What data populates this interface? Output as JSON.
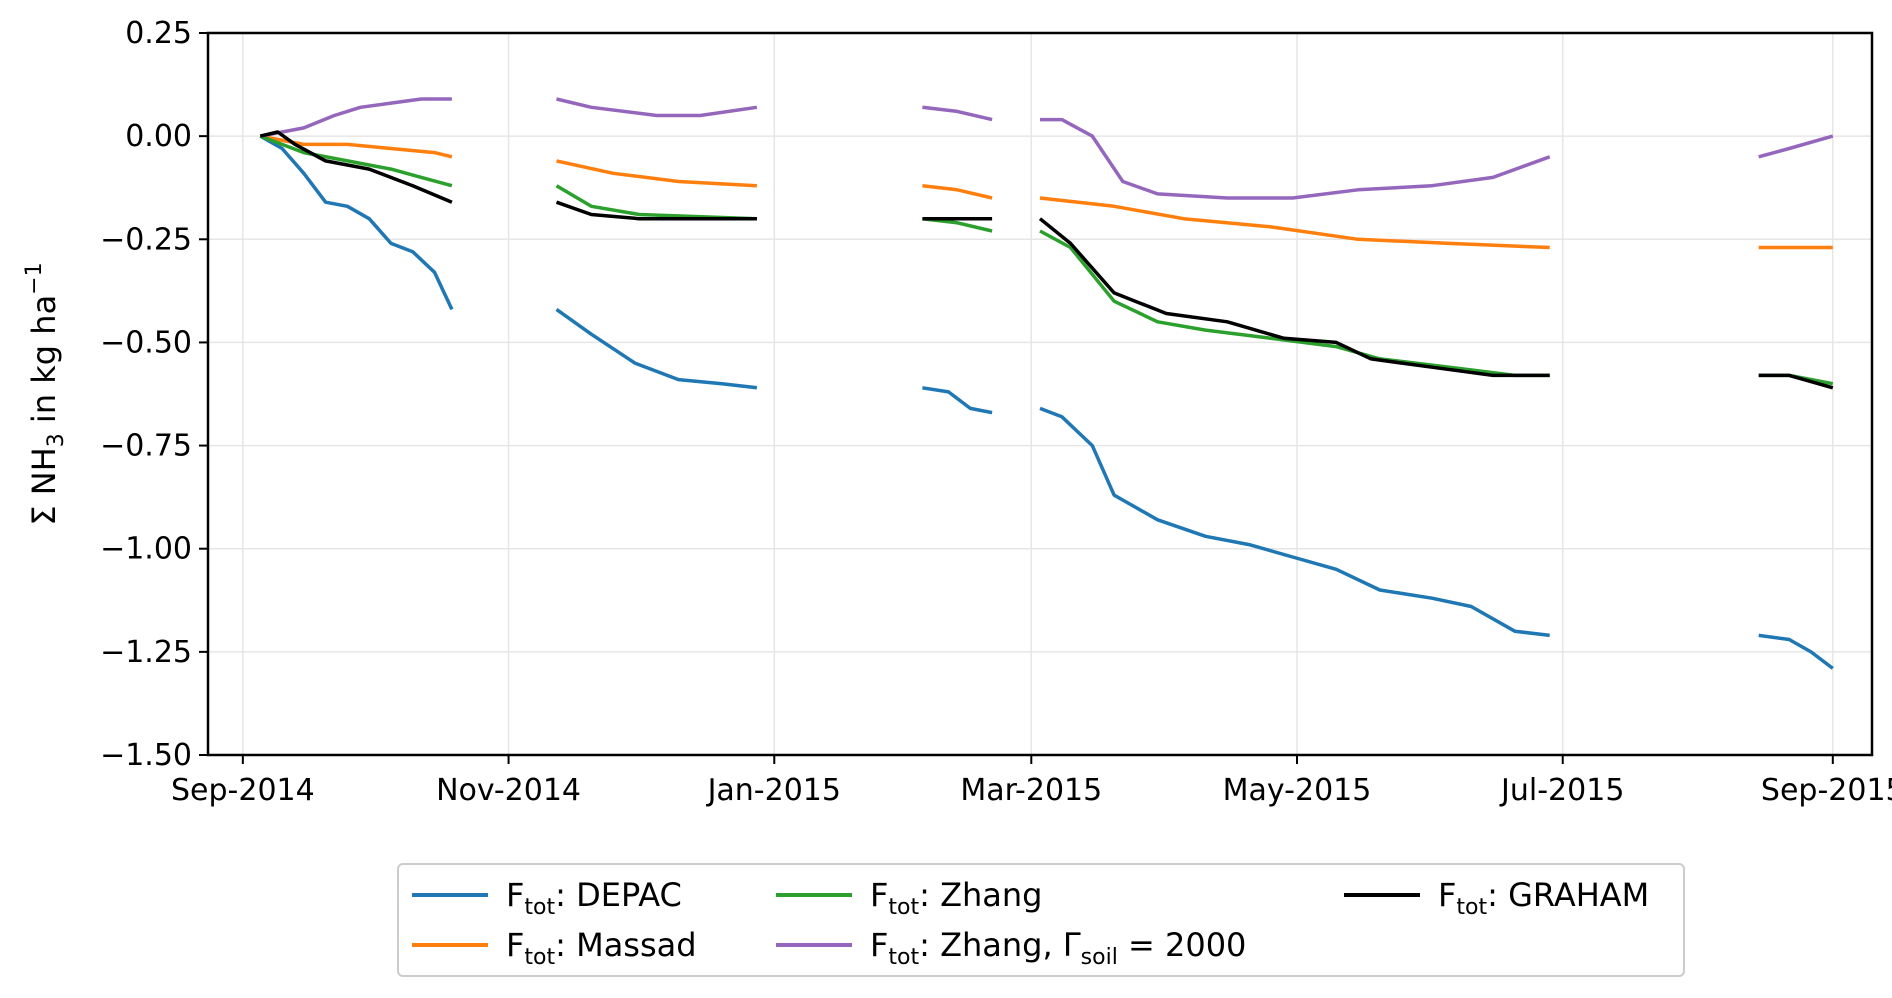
{
  "chart_data": {
    "type": "line",
    "title": "",
    "xlabel": "",
    "ylabel": "Σ NH₃ in kg ha⁻¹",
    "ylim": [
      -1.5,
      0.25
    ],
    "yticks": [
      0.25,
      0.0,
      -0.25,
      -0.5,
      -0.75,
      -1.0,
      -1.25,
      -1.5
    ],
    "ytick_labels": [
      "0.25",
      "0.00",
      "−0.25",
      "−0.50",
      "−0.75",
      "−1.00",
      "−1.25",
      "−1.50"
    ],
    "xlim": [
      "2014-08-24",
      "2015-09-10"
    ],
    "xticks": [
      "2014-09-01",
      "2014-11-01",
      "2015-01-01",
      "2015-03-01",
      "2015-05-01",
      "2015-07-01",
      "2015-09-01"
    ],
    "xtick_labels": [
      "Sep-2014",
      "Nov-2014",
      "Jan-2015",
      "Mar-2015",
      "May-2015",
      "Jul-2015",
      "Sep-2015"
    ],
    "grid": true,
    "legend_position": "bottom",
    "series": [
      {
        "name": "DEPAC",
        "legend_prefix": "F",
        "legend_sub": "tot",
        "color": "#1f77b4",
        "segments": [
          [
            [
              "2014-09-05",
              0
            ],
            [
              "2014-09-10",
              -0.03
            ],
            [
              "2014-09-15",
              -0.09
            ],
            [
              "2014-09-20",
              -0.16
            ],
            [
              "2014-09-25",
              -0.17
            ],
            [
              "2014-09-30",
              -0.2
            ],
            [
              "2014-10-05",
              -0.26
            ],
            [
              "2014-10-10",
              -0.28
            ],
            [
              "2014-10-15",
              -0.33
            ],
            [
              "2014-10-19",
              -0.42
            ]
          ],
          [
            [
              "2014-11-12",
              -0.42
            ],
            [
              "2014-11-20",
              -0.48
            ],
            [
              "2014-11-30",
              -0.55
            ],
            [
              "2014-12-10",
              -0.59
            ],
            [
              "2014-12-20",
              -0.6
            ],
            [
              "2014-12-28",
              -0.61
            ]
          ],
          [
            [
              "2015-02-04",
              -0.61
            ],
            [
              "2015-02-10",
              -0.62
            ],
            [
              "2015-02-15",
              -0.66
            ],
            [
              "2015-02-20",
              -0.67
            ]
          ],
          [
            [
              "2015-03-03",
              -0.66
            ],
            [
              "2015-03-08",
              -0.68
            ],
            [
              "2015-03-15",
              -0.75
            ],
            [
              "2015-03-20",
              -0.87
            ],
            [
              "2015-03-30",
              -0.93
            ],
            [
              "2015-04-10",
              -0.97
            ],
            [
              "2015-04-20",
              -0.99
            ],
            [
              "2015-04-30",
              -1.02
            ],
            [
              "2015-05-10",
              -1.05
            ],
            [
              "2015-05-20",
              -1.1
            ],
            [
              "2015-06-01",
              -1.12
            ],
            [
              "2015-06-10",
              -1.14
            ],
            [
              "2015-06-20",
              -1.2
            ],
            [
              "2015-06-28",
              -1.21
            ]
          ],
          [
            [
              "2015-08-15",
              -1.21
            ],
            [
              "2015-08-22",
              -1.22
            ],
            [
              "2015-08-27",
              -1.25
            ],
            [
              "2015-09-01",
              -1.29
            ]
          ]
        ]
      },
      {
        "name": "Massad",
        "legend_prefix": "F",
        "legend_sub": "tot",
        "color": "#ff7f0e",
        "segments": [
          [
            [
              "2014-09-05",
              0
            ],
            [
              "2014-09-15",
              -0.02
            ],
            [
              "2014-09-25",
              -0.02
            ],
            [
              "2014-10-05",
              -0.03
            ],
            [
              "2014-10-15",
              -0.04
            ],
            [
              "2014-10-19",
              -0.05
            ]
          ],
          [
            [
              "2014-11-12",
              -0.06
            ],
            [
              "2014-11-25",
              -0.09
            ],
            [
              "2014-12-10",
              -0.11
            ],
            [
              "2014-12-28",
              -0.12
            ]
          ],
          [
            [
              "2015-02-04",
              -0.12
            ],
            [
              "2015-02-12",
              -0.13
            ],
            [
              "2015-02-20",
              -0.15
            ]
          ],
          [
            [
              "2015-03-03",
              -0.15
            ],
            [
              "2015-03-20",
              -0.17
            ],
            [
              "2015-04-05",
              -0.2
            ],
            [
              "2015-04-25",
              -0.22
            ],
            [
              "2015-05-15",
              -0.25
            ],
            [
              "2015-06-05",
              -0.26
            ],
            [
              "2015-06-28",
              -0.27
            ]
          ],
          [
            [
              "2015-08-15",
              -0.27
            ],
            [
              "2015-09-01",
              -0.27
            ]
          ]
        ]
      },
      {
        "name": "Zhang",
        "legend_prefix": "F",
        "legend_sub": "tot",
        "color": "#2ca02c",
        "segments": [
          [
            [
              "2014-09-05",
              0
            ],
            [
              "2014-09-10",
              -0.02
            ],
            [
              "2014-09-15",
              -0.04
            ],
            [
              "2014-09-25",
              -0.06
            ],
            [
              "2014-10-05",
              -0.08
            ],
            [
              "2014-10-12",
              -0.1
            ],
            [
              "2014-10-19",
              -0.12
            ]
          ],
          [
            [
              "2014-11-12",
              -0.12
            ],
            [
              "2014-11-20",
              -0.17
            ],
            [
              "2014-12-01",
              -0.19
            ],
            [
              "2014-12-28",
              -0.2
            ]
          ],
          [
            [
              "2015-02-04",
              -0.2
            ],
            [
              "2015-02-12",
              -0.21
            ],
            [
              "2015-02-20",
              -0.23
            ]
          ],
          [
            [
              "2015-03-03",
              -0.23
            ],
            [
              "2015-03-10",
              -0.27
            ],
            [
              "2015-03-20",
              -0.4
            ],
            [
              "2015-03-30",
              -0.45
            ],
            [
              "2015-04-10",
              -0.47
            ],
            [
              "2015-04-25",
              -0.49
            ],
            [
              "2015-05-10",
              -0.51
            ],
            [
              "2015-05-20",
              -0.54
            ],
            [
              "2015-06-05",
              -0.56
            ],
            [
              "2015-06-20",
              -0.58
            ],
            [
              "2015-06-28",
              -0.58
            ]
          ],
          [
            [
              "2015-08-15",
              -0.58
            ],
            [
              "2015-08-22",
              -0.58
            ],
            [
              "2015-09-01",
              -0.6
            ]
          ]
        ]
      },
      {
        "name": "Zhang, Γ = 2000",
        "legend_prefix": "F",
        "legend_sub": "tot",
        "legend_gamma_sub": "soil",
        "color": "#9467bd",
        "segments": [
          [
            [
              "2014-09-05",
              0
            ],
            [
              "2014-09-10",
              0.01
            ],
            [
              "2014-09-15",
              0.02
            ],
            [
              "2014-09-22",
              0.05
            ],
            [
              "2014-09-28",
              0.07
            ],
            [
              "2014-10-05",
              0.08
            ],
            [
              "2014-10-12",
              0.09
            ],
            [
              "2014-10-19",
              0.09
            ]
          ],
          [
            [
              "2014-11-12",
              0.09
            ],
            [
              "2014-11-20",
              0.07
            ],
            [
              "2014-12-05",
              0.05
            ],
            [
              "2014-12-15",
              0.05
            ],
            [
              "2014-12-28",
              0.07
            ]
          ],
          [
            [
              "2015-02-04",
              0.07
            ],
            [
              "2015-02-12",
              0.06
            ],
            [
              "2015-02-20",
              0.04
            ]
          ],
          [
            [
              "2015-03-03",
              0.04
            ],
            [
              "2015-03-08",
              0.04
            ],
            [
              "2015-03-15",
              0.0
            ],
            [
              "2015-03-22",
              -0.11
            ],
            [
              "2015-03-30",
              -0.14
            ],
            [
              "2015-04-15",
              -0.15
            ],
            [
              "2015-04-30",
              -0.15
            ],
            [
              "2015-05-15",
              -0.13
            ],
            [
              "2015-06-01",
              -0.12
            ],
            [
              "2015-06-15",
              -0.1
            ],
            [
              "2015-06-28",
              -0.05
            ]
          ],
          [
            [
              "2015-08-15",
              -0.05
            ],
            [
              "2015-08-22",
              -0.03
            ],
            [
              "2015-09-01",
              0.0
            ]
          ]
        ]
      },
      {
        "name": "GRAHAM",
        "legend_prefix": "F",
        "legend_sub": "tot",
        "color": "#000000",
        "segments": [
          [
            [
              "2014-09-05",
              0
            ],
            [
              "2014-09-09",
              0.01
            ],
            [
              "2014-09-13",
              -0.02
            ],
            [
              "2014-09-20",
              -0.06
            ],
            [
              "2014-09-30",
              -0.08
            ],
            [
              "2014-10-10",
              -0.12
            ],
            [
              "2014-10-19",
              -0.16
            ]
          ],
          [
            [
              "2014-11-12",
              -0.16
            ],
            [
              "2014-11-20",
              -0.19
            ],
            [
              "2014-12-01",
              -0.2
            ],
            [
              "2014-12-28",
              -0.2
            ]
          ],
          [
            [
              "2015-02-04",
              -0.2
            ],
            [
              "2015-02-12",
              -0.2
            ],
            [
              "2015-02-20",
              -0.2
            ]
          ],
          [
            [
              "2015-03-03",
              -0.2
            ],
            [
              "2015-03-10",
              -0.26
            ],
            [
              "2015-03-20",
              -0.38
            ],
            [
              "2015-04-01",
              -0.43
            ],
            [
              "2015-04-15",
              -0.45
            ],
            [
              "2015-04-28",
              -0.49
            ],
            [
              "2015-05-10",
              -0.5
            ],
            [
              "2015-05-18",
              -0.54
            ],
            [
              "2015-06-01",
              -0.56
            ],
            [
              "2015-06-15",
              -0.58
            ],
            [
              "2015-06-28",
              -0.58
            ]
          ],
          [
            [
              "2015-08-15",
              -0.58
            ],
            [
              "2015-08-22",
              -0.58
            ],
            [
              "2015-09-01",
              -0.61
            ]
          ]
        ]
      }
    ]
  },
  "legend": {
    "equals_2000": "= 2000",
    "gamma": "Γ"
  }
}
